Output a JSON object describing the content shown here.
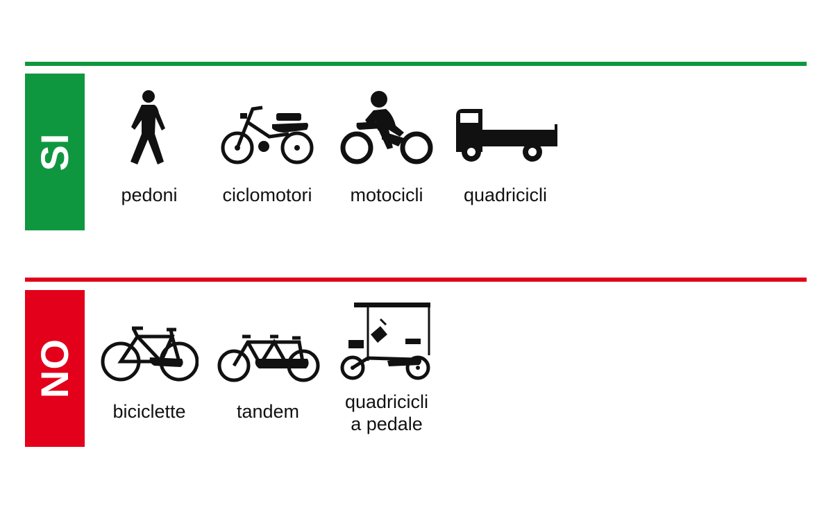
{
  "colors": {
    "allowed": "#0f9740",
    "forbidden": "#e2001a",
    "icon": "#111111"
  },
  "allowed": {
    "tag": "SI",
    "items": [
      {
        "label": "pedoni",
        "icon": "pedestrian-icon"
      },
      {
        "label": "ciclomotori",
        "icon": "moped-icon"
      },
      {
        "label": "motocicli",
        "icon": "motorcycle-icon"
      },
      {
        "label": "quadricicli",
        "icon": "quadricycle-truck-icon"
      }
    ]
  },
  "forbidden": {
    "tag": "NO",
    "items": [
      {
        "label": "biciclette",
        "icon": "bicycle-icon"
      },
      {
        "label": "tandem",
        "icon": "tandem-icon"
      },
      {
        "label": "quadricicli\na pedale",
        "icon": "pedal-quadricycle-icon"
      }
    ]
  }
}
